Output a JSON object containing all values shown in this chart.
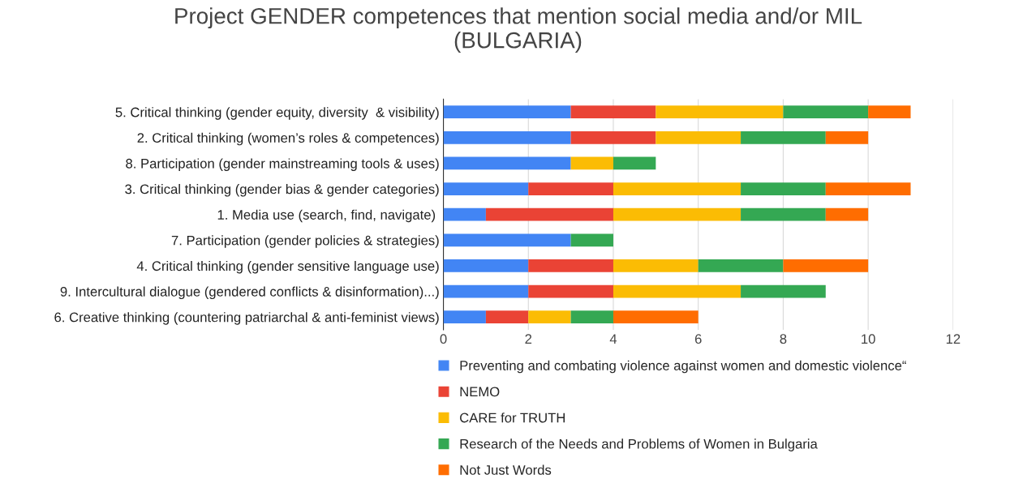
{
  "chart_data": {
    "type": "bar",
    "orientation": "horizontal",
    "stacked": true,
    "title": "Project GENDER competences that mention social media and/or MIL\n(BULGARIA)",
    "categories": [
      "5. Critical thinking (gender equity, diversity  & visibility)",
      "2. Critical thinking (women’s roles & competences)",
      "8. Participation (gender mainstreaming tools & uses)",
      "3. Critical thinking (gender bias & gender categories)",
      "1. Media use (search, find, navigate) ",
      "7. Participation (gender policies & strategies)",
      "4. Critical thinking (gender sensitive language use)",
      "9. Intercultural dialogue (gendered conflicts & disinformation)...)",
      "6. Creative thinking (countering patriarchal & anti-feminist views)"
    ],
    "series": [
      {
        "name": "Preventing and combating violence against women and domestic violence“",
        "color": "#4285f4",
        "values": [
          3,
          3,
          3,
          2,
          1,
          3,
          2,
          2,
          1
        ]
      },
      {
        "name": "NEMO",
        "color": "#ea4335",
        "values": [
          2,
          2,
          null,
          2,
          3,
          null,
          2,
          2,
          1
        ]
      },
      {
        "name": "CARE for TRUTH",
        "color": "#fbbc04",
        "values": [
          3,
          2,
          1,
          3,
          3,
          null,
          2,
          3,
          1
        ]
      },
      {
        "name": "Research of the Needs and Problems of Women in Bulgaria",
        "color": "#34a853",
        "values": [
          2,
          2,
          1,
          2,
          2,
          1,
          2,
          2,
          1
        ]
      },
      {
        "name": "Not Just Words",
        "color": "#ff6d01",
        "values": [
          1,
          1,
          null,
          2,
          1,
          null,
          2,
          null,
          2
        ]
      }
    ],
    "xlim": [
      0,
      12
    ],
    "xticks": [
      0,
      2,
      4,
      6,
      8,
      10,
      12
    ],
    "grid": "x",
    "legend": "bottom"
  }
}
